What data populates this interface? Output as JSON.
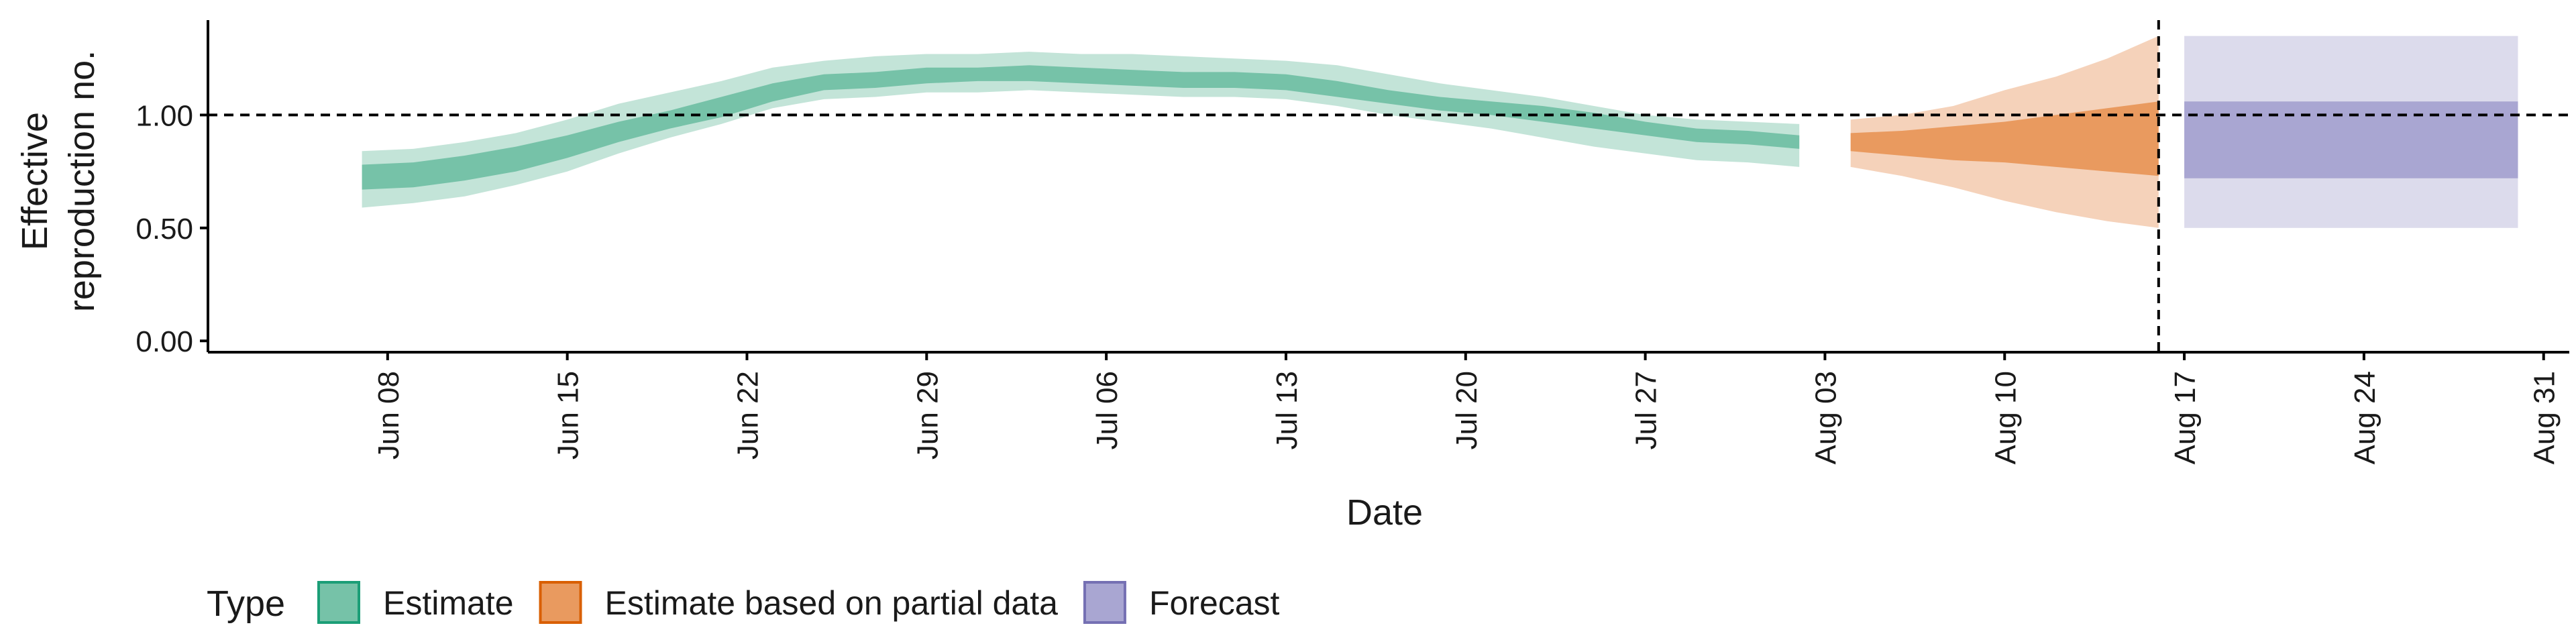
{
  "chart_data": {
    "type": "area",
    "xlabel": "Date",
    "ylabel_lines": [
      "Effective",
      "reproduction no."
    ],
    "ylim": [
      -0.05,
      1.42
    ],
    "yticks": [
      0.0,
      0.5,
      1.0
    ],
    "ytick_labels": [
      "0.00",
      "0.50",
      "1.00"
    ],
    "xlim": [
      "2020-06-01",
      "2020-09-01"
    ],
    "xticks": [
      "2020-06-08",
      "2020-06-15",
      "2020-06-22",
      "2020-06-29",
      "2020-07-06",
      "2020-07-13",
      "2020-07-20",
      "2020-07-27",
      "2020-08-03",
      "2020-08-10",
      "2020-08-17",
      "2020-08-24",
      "2020-08-31"
    ],
    "xtick_labels": [
      "Jun 08",
      "Jun 15",
      "Jun 22",
      "Jun 29",
      "Jul 06",
      "Jul 13",
      "Jul 20",
      "Jul 27",
      "Aug 03",
      "Aug 10",
      "Aug 17",
      "Aug 24",
      "Aug 31"
    ],
    "reference_hline": 1.0,
    "reference_vline": "2020-08-16",
    "legend": {
      "title": "Type",
      "position": "bottom-left",
      "entries": [
        {
          "label": "Estimate",
          "color": "#76C2A8",
          "border": "#1B9E77"
        },
        {
          "label": "Estimate based on partial data",
          "color": "#E99A5F",
          "border": "#D95F02"
        },
        {
          "label": "Forecast",
          "color": "#A9A6D2",
          "border": "#7570B3"
        }
      ]
    },
    "series": [
      {
        "name": "Estimate",
        "color_inner": "#76C2A8",
        "color_outer": "#C3E4D8",
        "x": [
          "2020-06-07",
          "2020-06-09",
          "2020-06-11",
          "2020-06-13",
          "2020-06-15",
          "2020-06-17",
          "2020-06-19",
          "2020-06-21",
          "2020-06-23",
          "2020-06-25",
          "2020-06-27",
          "2020-06-29",
          "2020-07-01",
          "2020-07-03",
          "2020-07-05",
          "2020-07-07",
          "2020-07-09",
          "2020-07-11",
          "2020-07-13",
          "2020-07-15",
          "2020-07-17",
          "2020-07-19",
          "2020-07-21",
          "2020-07-23",
          "2020-07-25",
          "2020-07-27",
          "2020-07-29",
          "2020-07-31",
          "2020-08-02"
        ],
        "inner_lower": [
          0.67,
          0.68,
          0.71,
          0.75,
          0.81,
          0.88,
          0.94,
          0.99,
          1.06,
          1.11,
          1.12,
          1.14,
          1.15,
          1.15,
          1.14,
          1.13,
          1.12,
          1.12,
          1.11,
          1.08,
          1.05,
          1.02,
          1.0,
          0.97,
          0.94,
          0.91,
          0.88,
          0.87,
          0.85
        ],
        "inner_upper": [
          0.78,
          0.79,
          0.82,
          0.86,
          0.91,
          0.97,
          1.02,
          1.08,
          1.14,
          1.18,
          1.19,
          1.21,
          1.21,
          1.22,
          1.21,
          1.2,
          1.19,
          1.19,
          1.18,
          1.15,
          1.11,
          1.08,
          1.06,
          1.04,
          1.01,
          0.97,
          0.94,
          0.93,
          0.91
        ],
        "outer_lower": [
          0.59,
          0.61,
          0.64,
          0.69,
          0.75,
          0.83,
          0.9,
          0.96,
          1.03,
          1.07,
          1.08,
          1.1,
          1.1,
          1.11,
          1.1,
          1.09,
          1.08,
          1.08,
          1.07,
          1.04,
          1.0,
          0.97,
          0.94,
          0.9,
          0.86,
          0.83,
          0.8,
          0.79,
          0.77
        ],
        "outer_upper": [
          0.84,
          0.85,
          0.88,
          0.92,
          0.98,
          1.05,
          1.1,
          1.15,
          1.21,
          1.24,
          1.26,
          1.27,
          1.27,
          1.28,
          1.27,
          1.27,
          1.26,
          1.25,
          1.24,
          1.22,
          1.18,
          1.14,
          1.11,
          1.08,
          1.04,
          1.0,
          0.98,
          0.97,
          0.96
        ]
      },
      {
        "name": "Estimate based on partial data",
        "color_inner": "#E99A5F",
        "color_outer": "#F5D2BA",
        "x": [
          "2020-08-04",
          "2020-08-06",
          "2020-08-08",
          "2020-08-10",
          "2020-08-12",
          "2020-08-14",
          "2020-08-16"
        ],
        "inner_lower": [
          0.84,
          0.82,
          0.8,
          0.79,
          0.77,
          0.75,
          0.73
        ],
        "inner_upper": [
          0.92,
          0.93,
          0.95,
          0.97,
          1.0,
          1.03,
          1.06
        ],
        "outer_lower": [
          0.77,
          0.73,
          0.68,
          0.62,
          0.57,
          0.53,
          0.5
        ],
        "outer_upper": [
          0.98,
          1.0,
          1.04,
          1.11,
          1.17,
          1.25,
          1.35
        ]
      },
      {
        "name": "Forecast",
        "color_inner": "#A9A6D2",
        "color_outer": "#DCDBEC",
        "x": [
          "2020-08-17",
          "2020-08-30"
        ],
        "inner_lower": [
          0.72,
          0.72
        ],
        "inner_upper": [
          1.06,
          1.06
        ],
        "outer_lower": [
          0.5,
          0.5
        ],
        "outer_upper": [
          1.35,
          1.35
        ]
      }
    ]
  }
}
